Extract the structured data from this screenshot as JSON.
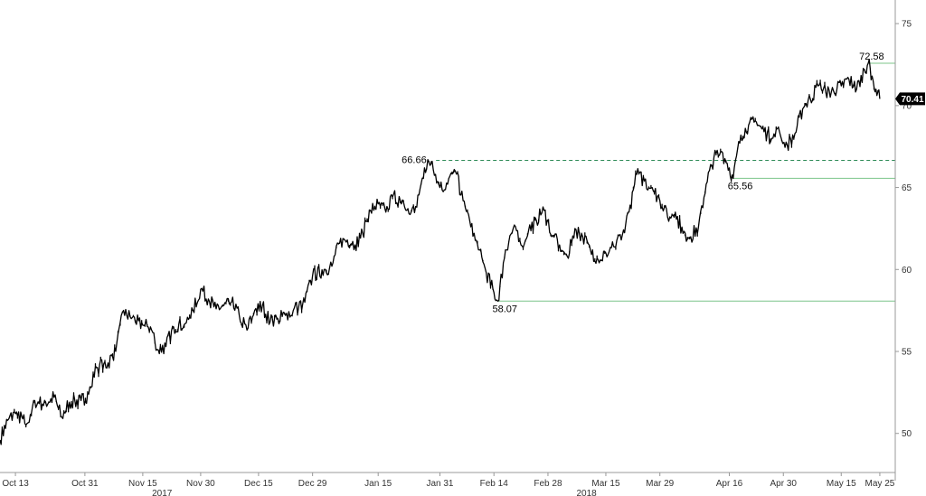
{
  "chart_data": {
    "type": "line",
    "title": "",
    "xlabel": "",
    "ylabel": "",
    "ylim": [
      48,
      76
    ],
    "y_ticks": [
      50,
      55,
      60,
      65,
      70,
      75
    ],
    "y_tick_labels": [
      "50",
      "55",
      "60",
      "65",
      "70",
      "75"
    ],
    "y_axis_position": "right",
    "grid": false,
    "x_ticks": [
      {
        "label": "Oct 13",
        "date": "2017-10-13"
      },
      {
        "label": "Oct 31",
        "date": "2017-10-31"
      },
      {
        "label": "Nov 15",
        "date": "2017-11-15"
      },
      {
        "label": "Nov 30",
        "date": "2017-11-30"
      },
      {
        "label": "Dec 15",
        "date": "2017-12-15"
      },
      {
        "label": "Dec 29",
        "date": "2017-12-29"
      },
      {
        "label": "Jan 15",
        "date": "2018-01-15"
      },
      {
        "label": "Jan 31",
        "date": "2018-01-31"
      },
      {
        "label": "Feb 14",
        "date": "2018-02-14"
      },
      {
        "label": "Feb 28",
        "date": "2018-02-28"
      },
      {
        "label": "Mar 15",
        "date": "2018-03-15"
      },
      {
        "label": "Mar 29",
        "date": "2018-03-29"
      },
      {
        "label": "Apr 16",
        "date": "2018-04-16"
      },
      {
        "label": "Apr 30",
        "date": "2018-04-30"
      },
      {
        "label": "May 15",
        "date": "2018-05-15"
      },
      {
        "label": "May 25",
        "date": "2018-05-25"
      }
    ],
    "year_labels": [
      {
        "label": "2017",
        "date": "2017-11-20"
      },
      {
        "label": "2018",
        "date": "2018-03-10"
      }
    ],
    "x_start": "2017-10-09",
    "x_end": "2018-05-29",
    "series": [
      {
        "color": "#000000",
        "points": [
          [
            "2017-10-09",
            49.6
          ],
          [
            "2017-10-11",
            50.8
          ],
          [
            "2017-10-13",
            51.2
          ],
          [
            "2017-10-16",
            50.6
          ],
          [
            "2017-10-18",
            52.0
          ],
          [
            "2017-10-20",
            51.8
          ],
          [
            "2017-10-23",
            52.2
          ],
          [
            "2017-10-25",
            51.0
          ],
          [
            "2017-10-27",
            51.9
          ],
          [
            "2017-10-30",
            52.0
          ],
          [
            "2017-11-01",
            52.4
          ],
          [
            "2017-11-03",
            54.0
          ],
          [
            "2017-11-06",
            54.3
          ],
          [
            "2017-11-08",
            55.0
          ],
          [
            "2017-11-10",
            57.5
          ],
          [
            "2017-11-12",
            57.0
          ],
          [
            "2017-11-15",
            56.6
          ],
          [
            "2017-11-17",
            56.5
          ],
          [
            "2017-11-19",
            55.1
          ],
          [
            "2017-11-21",
            55.3
          ],
          [
            "2017-11-23",
            56.5
          ],
          [
            "2017-11-26",
            56.7
          ],
          [
            "2017-11-28",
            57.5
          ],
          [
            "2017-11-30",
            58.8
          ],
          [
            "2017-12-02",
            58.2
          ],
          [
            "2017-12-04",
            57.6
          ],
          [
            "2017-12-06",
            57.8
          ],
          [
            "2017-12-08",
            58.0
          ],
          [
            "2017-12-10",
            57.2
          ],
          [
            "2017-12-12",
            56.3
          ],
          [
            "2017-12-14",
            57.5
          ],
          [
            "2017-12-16",
            57.8
          ],
          [
            "2017-12-18",
            56.8
          ],
          [
            "2017-12-20",
            57.0
          ],
          [
            "2017-12-22",
            57.2
          ],
          [
            "2017-12-24",
            57.5
          ],
          [
            "2017-12-27",
            58.0
          ],
          [
            "2017-12-29",
            59.6
          ],
          [
            "2018-01-01",
            60.0
          ],
          [
            "2018-01-03",
            60.2
          ],
          [
            "2018-01-05",
            61.6
          ],
          [
            "2018-01-07",
            61.8
          ],
          [
            "2018-01-09",
            61.5
          ],
          [
            "2018-01-11",
            62.2
          ],
          [
            "2018-01-13",
            63.6
          ],
          [
            "2018-01-15",
            64.0
          ],
          [
            "2018-01-17",
            63.5
          ],
          [
            "2018-01-19",
            64.6
          ],
          [
            "2018-01-21",
            64.0
          ],
          [
            "2018-01-23",
            63.4
          ],
          [
            "2018-01-25",
            63.8
          ],
          [
            "2018-01-27",
            66.2
          ],
          [
            "2018-01-29",
            66.6
          ],
          [
            "2018-01-31",
            65.0
          ],
          [
            "2018-02-02",
            65.2
          ],
          [
            "2018-02-04",
            66.0
          ],
          [
            "2018-02-06",
            64.2
          ],
          [
            "2018-02-08",
            62.6
          ],
          [
            "2018-02-10",
            61.2
          ],
          [
            "2018-02-12",
            59.8
          ],
          [
            "2018-02-14",
            58.6
          ],
          [
            "2018-02-15",
            58.07
          ],
          [
            "2018-02-17",
            61.2
          ],
          [
            "2018-02-19",
            62.5
          ],
          [
            "2018-02-21",
            61.5
          ],
          [
            "2018-02-23",
            62.4
          ],
          [
            "2018-02-25",
            63.0
          ],
          [
            "2018-02-27",
            63.6
          ],
          [
            "2018-03-01",
            62.0
          ],
          [
            "2018-03-03",
            61.5
          ],
          [
            "2018-03-05",
            60.8
          ],
          [
            "2018-03-07",
            62.5
          ],
          [
            "2018-03-09",
            62.0
          ],
          [
            "2018-03-11",
            61.2
          ],
          [
            "2018-03-13",
            60.6
          ],
          [
            "2018-03-15",
            61.0
          ],
          [
            "2018-03-17",
            61.4
          ],
          [
            "2018-03-19",
            61.8
          ],
          [
            "2018-03-21",
            63.5
          ],
          [
            "2018-03-23",
            65.8
          ],
          [
            "2018-03-25",
            65.4
          ],
          [
            "2018-03-27",
            65.0
          ],
          [
            "2018-03-29",
            64.2
          ],
          [
            "2018-03-31",
            63.2
          ],
          [
            "2018-04-02",
            63.5
          ],
          [
            "2018-04-04",
            62.2
          ],
          [
            "2018-04-06",
            62.0
          ],
          [
            "2018-04-08",
            62.6
          ],
          [
            "2018-04-10",
            65.2
          ],
          [
            "2018-04-12",
            66.8
          ],
          [
            "2018-04-14",
            67.2
          ],
          [
            "2018-04-16",
            66.2
          ],
          [
            "2018-04-17",
            65.56
          ],
          [
            "2018-04-19",
            68.2
          ],
          [
            "2018-04-21",
            68.8
          ],
          [
            "2018-04-23",
            69.0
          ],
          [
            "2018-04-25",
            68.4
          ],
          [
            "2018-04-27",
            68.0
          ],
          [
            "2018-04-29",
            68.4
          ],
          [
            "2018-05-01",
            67.6
          ],
          [
            "2018-05-03",
            68.3
          ],
          [
            "2018-05-05",
            69.8
          ],
          [
            "2018-05-07",
            70.4
          ],
          [
            "2018-05-09",
            71.2
          ],
          [
            "2018-05-11",
            70.8
          ],
          [
            "2018-05-13",
            70.9
          ],
          [
            "2018-05-15",
            71.2
          ],
          [
            "2018-05-17",
            71.6
          ],
          [
            "2018-05-19",
            71.0
          ],
          [
            "2018-05-21",
            72.2
          ],
          [
            "2018-05-22",
            72.58
          ],
          [
            "2018-05-23",
            71.8
          ],
          [
            "2018-05-24",
            71.0
          ],
          [
            "2018-05-25",
            70.41
          ]
        ]
      }
    ],
    "annotations": [
      {
        "label": "72.58",
        "value": 72.58,
        "date": "2018-05-22",
        "line_from": "2018-05-22",
        "style": "solid",
        "label_position": "above"
      },
      {
        "label": "66.66",
        "value": 66.66,
        "date": "2018-01-28",
        "line_from": "2018-01-30",
        "style": "dashed",
        "label_position": "left"
      },
      {
        "label": "65.56",
        "value": 65.56,
        "date": "2018-04-17",
        "line_from": "2018-04-17",
        "style": "solid",
        "label_position": "below"
      },
      {
        "label": "58.07",
        "value": 58.07,
        "date": "2018-02-15",
        "line_from": "2018-02-15",
        "style": "solid",
        "label_position": "below"
      }
    ],
    "last_value_label": "70.41",
    "last_value": 70.41,
    "colors": {
      "line": "#000000",
      "level_line": "#7cc48a",
      "dashed_line": "#2e8b57",
      "last_value_badge": "#000000"
    }
  }
}
